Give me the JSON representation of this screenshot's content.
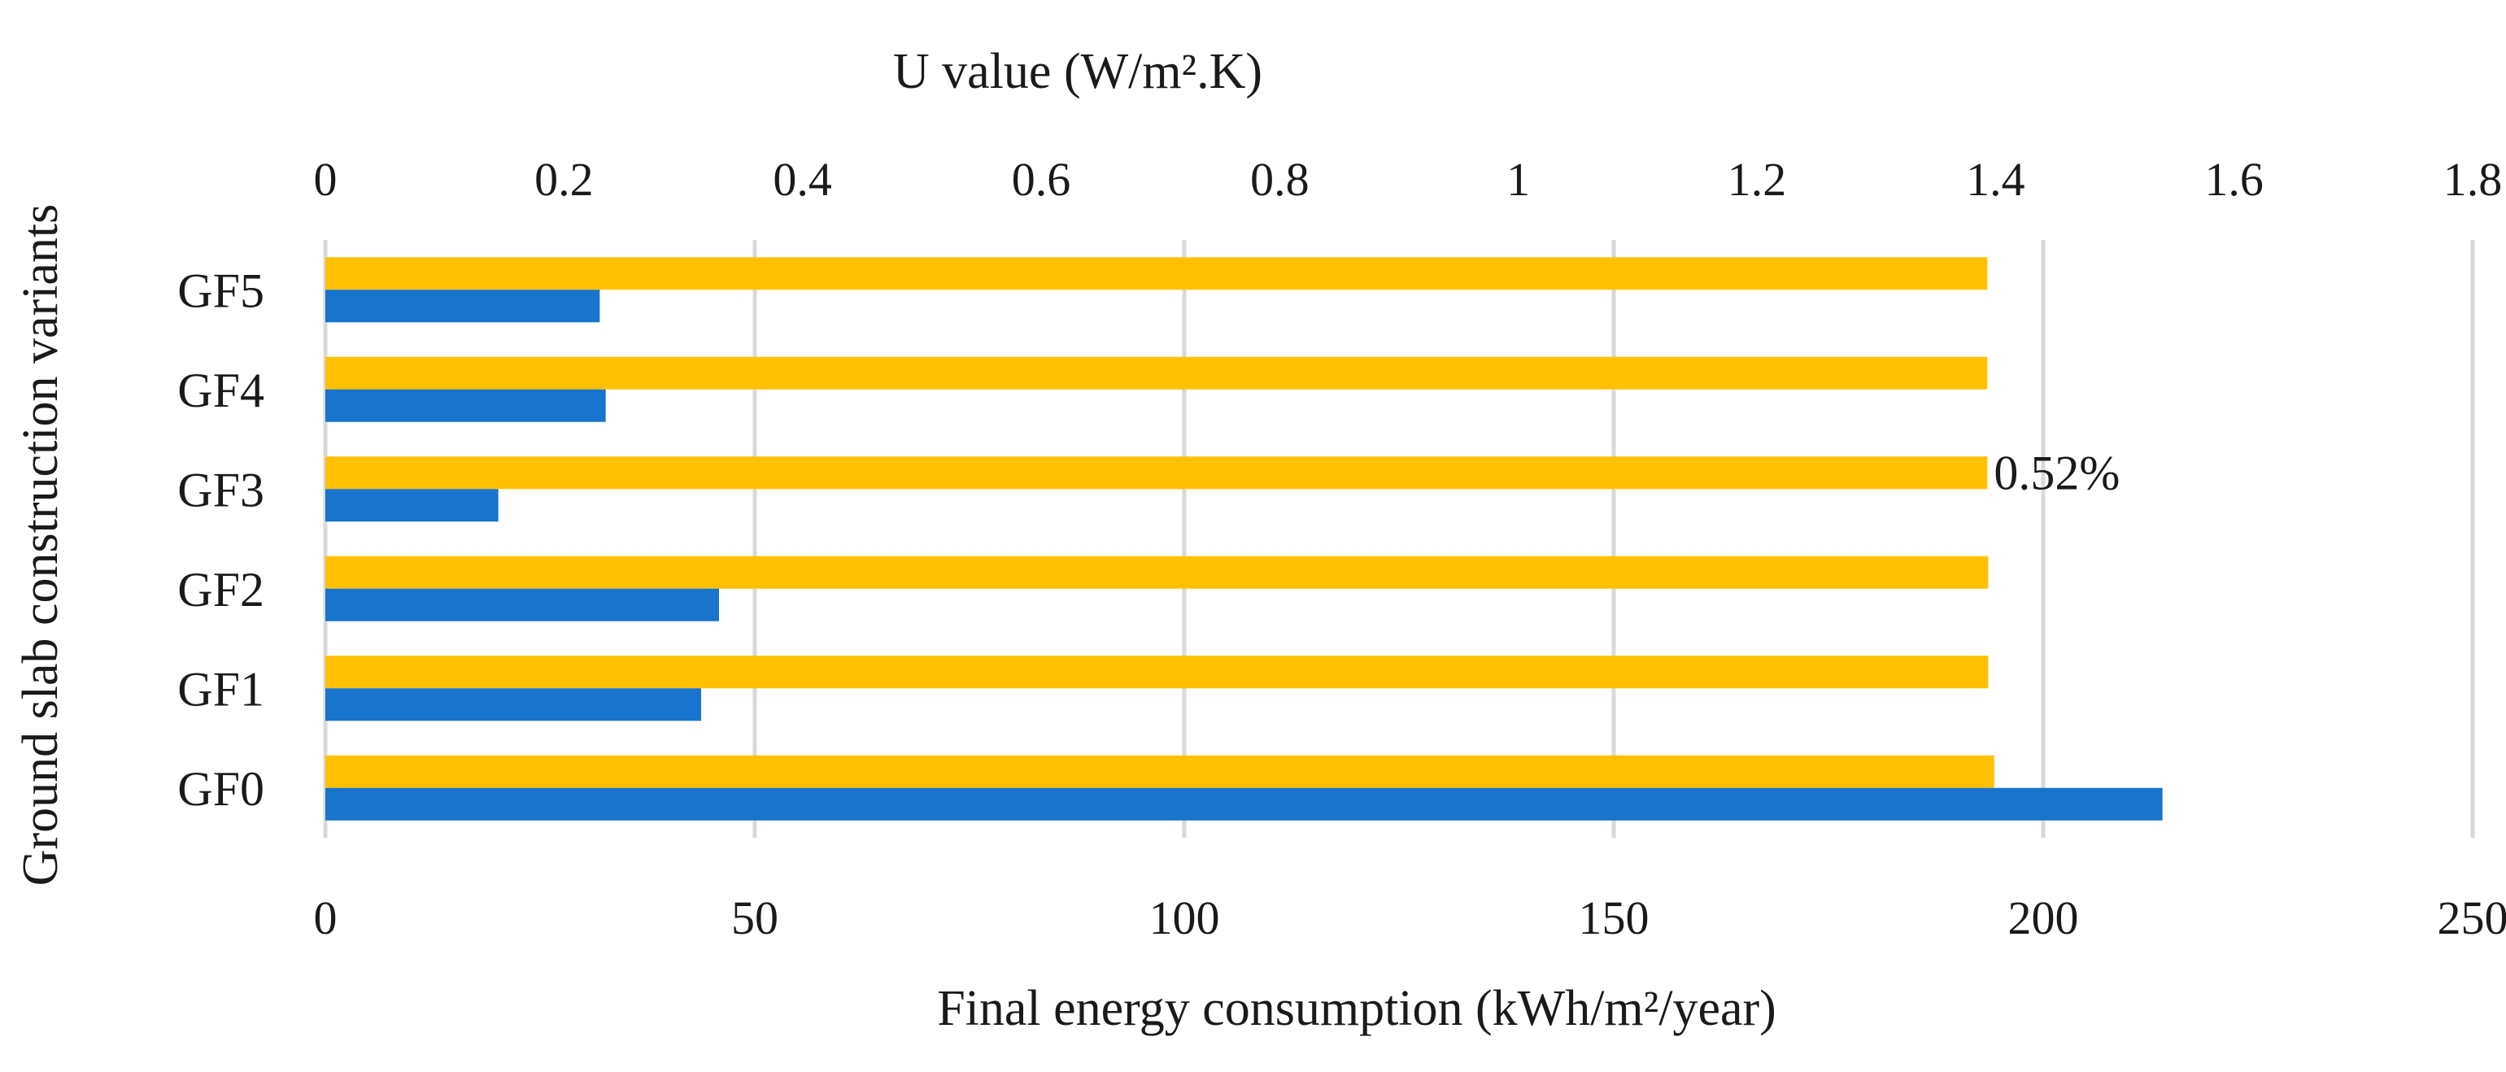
{
  "chart_data": {
    "type": "bar",
    "orientation": "horizontal",
    "categories": [
      "GF5",
      "GF4",
      "GF3",
      "GF2",
      "GF1",
      "GF0"
    ],
    "series": [
      {
        "name": "Final energy consumption",
        "axis": "bottom",
        "color": "#ffc000",
        "values": [
          193.5,
          193.5,
          193.5,
          193.6,
          193.6,
          194.3
        ]
      },
      {
        "name": "U value",
        "axis": "top",
        "color": "#1874cd",
        "values": [
          0.23,
          0.235,
          0.145,
          0.33,
          0.315,
          1.54
        ]
      }
    ],
    "annotations": [
      {
        "category": "GF3",
        "series": "Final energy consumption",
        "text": "0.52%"
      }
    ],
    "x_bottom": {
      "label": "Final energy consumption (kWh/m²/year)",
      "range": [
        0,
        250
      ],
      "ticks": [
        "0",
        "50",
        "100",
        "150",
        "200",
        "250"
      ]
    },
    "x_top": {
      "label": "U value (W/m².K)",
      "range": [
        0,
        1.8
      ],
      "ticks": [
        "0",
        "0.2",
        "0.4",
        "0.6",
        "0.8",
        "1",
        "1.2",
        "1.4",
        "1.6",
        "1.8"
      ]
    },
    "ylabel": "Ground slab construction variants",
    "grid": "vertical"
  }
}
